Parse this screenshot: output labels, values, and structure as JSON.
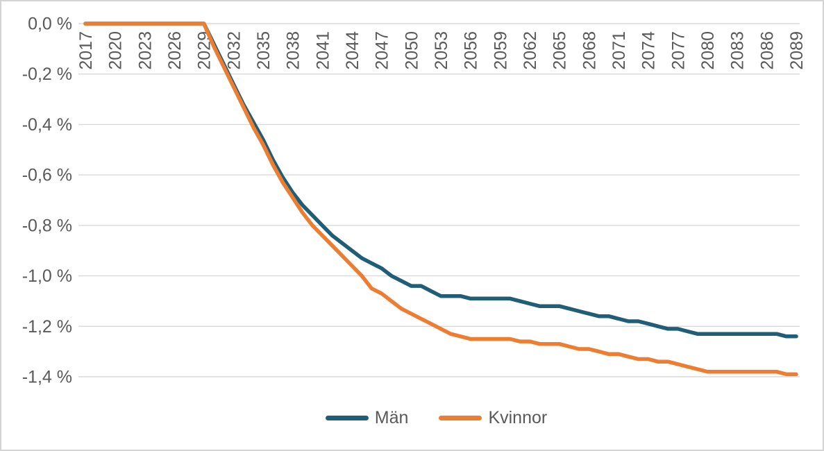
{
  "chart_data": {
    "type": "line",
    "x": [
      2017,
      2018,
      2019,
      2020,
      2021,
      2022,
      2023,
      2024,
      2025,
      2026,
      2027,
      2028,
      2029,
      2030,
      2031,
      2032,
      2033,
      2034,
      2035,
      2036,
      2037,
      2038,
      2039,
      2040,
      2041,
      2042,
      2043,
      2044,
      2045,
      2046,
      2047,
      2048,
      2049,
      2050,
      2051,
      2052,
      2053,
      2054,
      2055,
      2056,
      2057,
      2058,
      2059,
      2060,
      2061,
      2062,
      2063,
      2064,
      2065,
      2066,
      2067,
      2068,
      2069,
      2070,
      2071,
      2072,
      2073,
      2074,
      2075,
      2076,
      2077,
      2078,
      2079,
      2080,
      2081,
      2082,
      2083,
      2084,
      2085,
      2086,
      2087,
      2088,
      2089
    ],
    "series": [
      {
        "name": "Män",
        "color": "#205E78",
        "values": [
          0,
          0,
          0,
          0,
          0,
          0,
          0,
          0,
          0,
          0,
          0,
          0,
          0,
          -0.08,
          -0.16,
          -0.24,
          -0.32,
          -0.39,
          -0.46,
          -0.54,
          -0.61,
          -0.67,
          -0.72,
          -0.76,
          -0.8,
          -0.84,
          -0.87,
          -0.9,
          -0.93,
          -0.95,
          -0.97,
          -1.0,
          -1.02,
          -1.04,
          -1.04,
          -1.06,
          -1.08,
          -1.08,
          -1.08,
          -1.09,
          -1.09,
          -1.09,
          -1.09,
          -1.09,
          -1.1,
          -1.11,
          -1.12,
          -1.12,
          -1.12,
          -1.13,
          -1.14,
          -1.15,
          -1.16,
          -1.16,
          -1.17,
          -1.18,
          -1.18,
          -1.19,
          -1.2,
          -1.21,
          -1.21,
          -1.22,
          -1.23,
          -1.23,
          -1.23,
          -1.23,
          -1.23,
          -1.23,
          -1.23,
          -1.23,
          -1.23,
          -1.24,
          -1.24
        ]
      },
      {
        "name": "Kvinnor",
        "color": "#ED7D31",
        "values": [
          0,
          0,
          0,
          0,
          0,
          0,
          0,
          0,
          0,
          0,
          0,
          0,
          0,
          -0.09,
          -0.17,
          -0.25,
          -0.33,
          -0.41,
          -0.48,
          -0.56,
          -0.63,
          -0.69,
          -0.75,
          -0.8,
          -0.84,
          -0.88,
          -0.92,
          -0.96,
          -1.0,
          -1.05,
          -1.07,
          -1.1,
          -1.13,
          -1.15,
          -1.17,
          -1.19,
          -1.21,
          -1.23,
          -1.24,
          -1.25,
          -1.25,
          -1.25,
          -1.25,
          -1.25,
          -1.26,
          -1.26,
          -1.27,
          -1.27,
          -1.27,
          -1.28,
          -1.29,
          -1.29,
          -1.3,
          -1.31,
          -1.31,
          -1.32,
          -1.33,
          -1.33,
          -1.34,
          -1.34,
          -1.35,
          -1.36,
          -1.37,
          -1.38,
          -1.38,
          -1.38,
          -1.38,
          -1.38,
          -1.38,
          -1.38,
          -1.38,
          -1.39,
          -1.39
        ]
      }
    ],
    "title": "",
    "xlabel": "",
    "ylabel": "",
    "xticks": [
      "2017",
      "2020",
      "2023",
      "2026",
      "2029",
      "2032",
      "2035",
      "2038",
      "2041",
      "2044",
      "2047",
      "2050",
      "2053",
      "2056",
      "2059",
      "2062",
      "2065",
      "2068",
      "2071",
      "2074",
      "2077",
      "2080",
      "2083",
      "2086",
      "2089"
    ],
    "yticks": {
      "labels": [
        "0,0 %",
        "-0,2 %",
        "-0,4 %",
        "-0,6 %",
        "-0,8 %",
        "-1,0 %",
        "-1,2 %",
        "-1,4 %"
      ],
      "values": [
        0,
        -0.2,
        -0.4,
        -0.6,
        -0.8,
        -1.0,
        -1.2,
        -1.4
      ]
    },
    "ylim": [
      -1.4,
      0
    ],
    "grid": "horizontal",
    "legend_position": "bottom",
    "colors": {
      "gridline": "#D9D9D9",
      "axis_text": "#595959",
      "frame_border": "#D4D4D4",
      "background": "#FFFFFF"
    }
  }
}
